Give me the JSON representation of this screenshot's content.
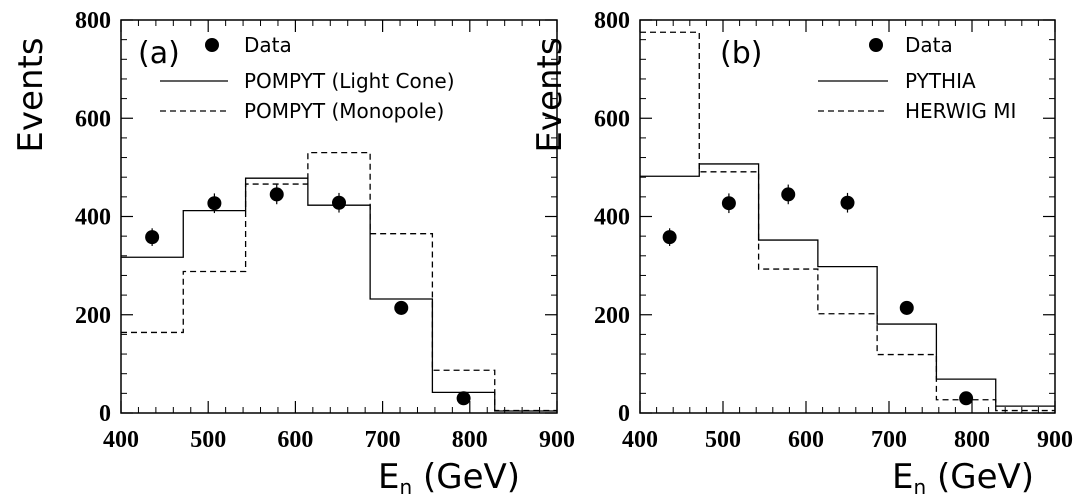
{
  "chart_data": [
    {
      "type": "line",
      "panel_label": "(a)",
      "xlabel": "E_n (GeV)",
      "xlabel_main": "E",
      "xlabel_sub": "n",
      "xlabel_tail": " (GeV)",
      "ylabel": "Events",
      "xlim": [
        400,
        900
      ],
      "ylim": [
        0,
        800
      ],
      "xticks": [
        "400",
        "500",
        "600",
        "700",
        "800",
        "900"
      ],
      "yticks": [
        "0",
        "200",
        "400",
        "600",
        "800"
      ],
      "legend": [
        {
          "label": "Data",
          "style": "marker"
        },
        {
          "label": "POMPYT (Light Cone)",
          "style": "solid"
        },
        {
          "label": "POMPYT (Monopole)",
          "style": "dashed"
        }
      ],
      "bin_edges": [
        400,
        471.4,
        542.9,
        614.3,
        685.7,
        757.1,
        828.6,
        900
      ],
      "series": [
        {
          "name": "Data",
          "style": "marker",
          "x": [
            435.7,
            507.1,
            578.6,
            650,
            721.4,
            792.9
          ],
          "y": [
            358,
            427,
            445,
            428,
            214,
            30
          ],
          "err": [
            18,
            20,
            20,
            20,
            14,
            5
          ]
        },
        {
          "name": "POMPYT (Light Cone)",
          "style": "solid",
          "values": [
            317,
            412,
            478,
            423,
            232,
            42,
            4
          ]
        },
        {
          "name": "POMPYT (Monopole)",
          "style": "dashed",
          "values": [
            164,
            288,
            466,
            530,
            365,
            87,
            5
          ]
        }
      ]
    },
    {
      "type": "line",
      "panel_label": "(b)",
      "xlabel": "E_n (GeV)",
      "xlabel_main": "E",
      "xlabel_sub": "n",
      "xlabel_tail": " (GeV)",
      "ylabel": "Events",
      "xlim": [
        400,
        900
      ],
      "ylim": [
        0,
        800
      ],
      "xticks": [
        "400",
        "500",
        "600",
        "700",
        "800",
        "900"
      ],
      "yticks": [
        "0",
        "200",
        "400",
        "600",
        "800"
      ],
      "legend": [
        {
          "label": "Data",
          "style": "marker"
        },
        {
          "label": "PYTHIA",
          "style": "solid"
        },
        {
          "label": "HERWIG MI",
          "style": "dashed"
        }
      ],
      "bin_edges": [
        400,
        471.4,
        542.9,
        614.3,
        685.7,
        757.1,
        828.6,
        900
      ],
      "series": [
        {
          "name": "Data",
          "style": "marker",
          "x": [
            435.7,
            507.1,
            578.6,
            650,
            721.4,
            792.9
          ],
          "y": [
            358,
            427,
            445,
            428,
            214,
            30
          ],
          "err": [
            18,
            20,
            20,
            20,
            14,
            5
          ]
        },
        {
          "name": "PYTHIA",
          "style": "solid",
          "values": [
            482,
            507,
            352,
            298,
            181,
            69,
            14
          ]
        },
        {
          "name": "HERWIG MI",
          "style": "dashed",
          "values": [
            775,
            491,
            293,
            202,
            119,
            27,
            5
          ]
        }
      ]
    }
  ]
}
